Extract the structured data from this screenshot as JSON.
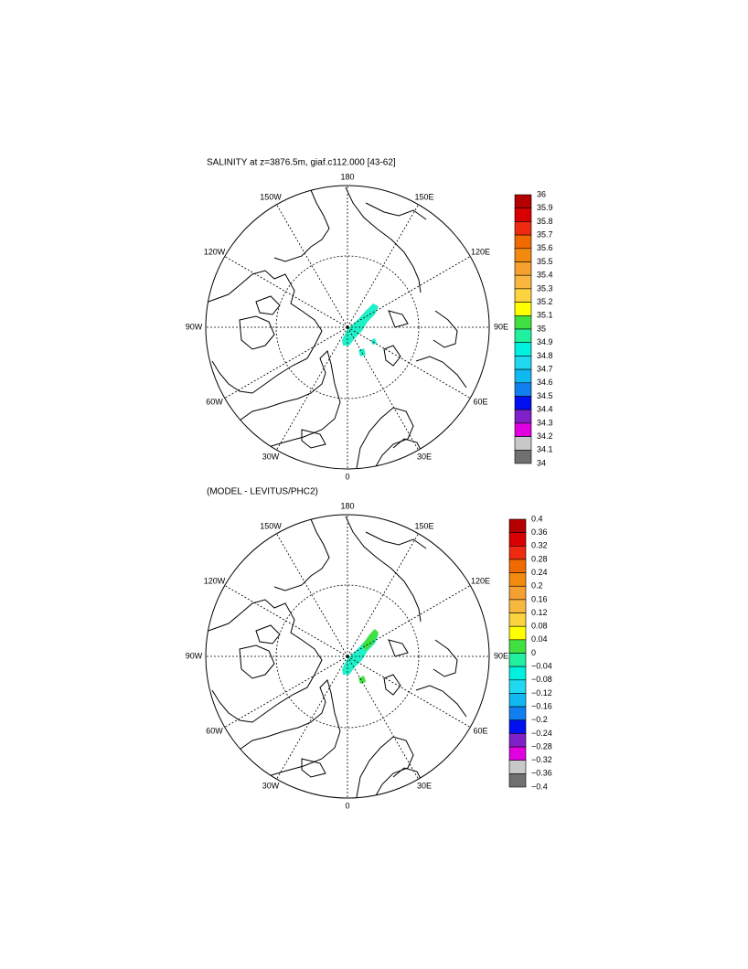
{
  "panels": [
    {
      "title": "SALINITY at z=3876.5m, giaf.c112.000 [43-62]",
      "lon_labels": [
        "180",
        "150E",
        "120E",
        "90E",
        "60E",
        "30E",
        "0",
        "30W",
        "60W",
        "90W",
        "120W",
        "150W"
      ],
      "colorbar": {
        "labels": [
          "36",
          "35.9",
          "35.8",
          "35.7",
          "35.6",
          "35.5",
          "35.4",
          "35.3",
          "35.2",
          "35.1",
          "35",
          "34.9",
          "34.8",
          "34.7",
          "34.6",
          "34.5",
          "34.4",
          "34.3",
          "34.2",
          "34.1",
          "34"
        ],
        "colors": [
          "#b40000",
          "#d80000",
          "#ee2a10",
          "#f06a00",
          "#f28a10",
          "#f5a030",
          "#f8b840",
          "#fcd440",
          "#ffff00",
          "#40e040",
          "#20f0a0",
          "#00f0e0",
          "#20d8f0",
          "#10b8f0",
          "#1080f0",
          "#0010f0",
          "#8020c8",
          "#e000e0",
          "#c8c8c8",
          "#707070"
        ]
      }
    },
    {
      "title": "(MODEL - LEVITUS/PHC2)",
      "lon_labels": [
        "180",
        "150E",
        "120E",
        "90E",
        "60E",
        "30E",
        "0",
        "30W",
        "60W",
        "90W",
        "120W",
        "150W"
      ],
      "colorbar": {
        "labels": [
          "0.4",
          "0.36",
          "0.32",
          "0.28",
          "0.24",
          "0.2",
          "0.16",
          "0.12",
          "0.08",
          "0.04",
          "0",
          "−0.04",
          "−0.08",
          "−0.12",
          "−0.16",
          "−0.2",
          "−0.24",
          "−0.28",
          "−0.32",
          "−0.36",
          "−0.4"
        ],
        "colors": [
          "#b40000",
          "#d80000",
          "#ee2a10",
          "#f06a00",
          "#f28a10",
          "#f5a030",
          "#f8b840",
          "#fcd440",
          "#ffff00",
          "#40e040",
          "#20f0a0",
          "#00f0e0",
          "#20d8f0",
          "#10b8f0",
          "#1080f0",
          "#0010f0",
          "#8020c8",
          "#e000e0",
          "#c8c8c8",
          "#707070"
        ]
      }
    }
  ]
}
